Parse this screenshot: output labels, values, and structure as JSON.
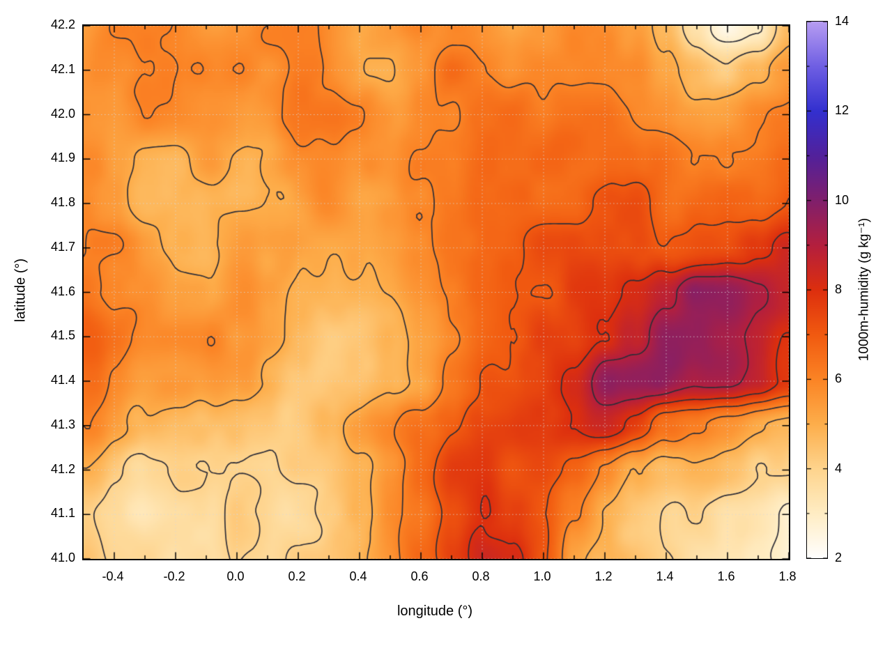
{
  "figure": {
    "background": "#ffffff"
  },
  "chart_data": {
    "type": "heatmap",
    "subtype": "filled-contour-map",
    "title": "",
    "x_axis": {
      "label": "longitude (°)",
      "range": [
        -0.5,
        1.8
      ],
      "tick_values": [
        -0.4,
        -0.2,
        0.0,
        0.2,
        0.4,
        0.6,
        0.8,
        1.0,
        1.2,
        1.4,
        1.6,
        1.8
      ],
      "tick_labels": [
        "-0.4",
        "-0.2",
        "0.0",
        "0.2",
        "0.4",
        "0.6",
        "0.8",
        "1.0",
        "1.2",
        "1.4",
        "1.6",
        "1.8"
      ],
      "minor_tick_step": 0.1
    },
    "y_axis": {
      "label": "latitude (°)",
      "range": [
        41.0,
        42.2
      ],
      "tick_values": [
        41.0,
        41.1,
        41.2,
        41.3,
        41.4,
        41.5,
        41.6,
        41.7,
        41.8,
        41.9,
        42.0,
        42.1,
        42.2
      ],
      "tick_labels": [
        "41.0",
        "41.1",
        "41.2",
        "41.3",
        "41.4",
        "41.5",
        "41.6",
        "41.7",
        "41.8",
        "41.9",
        "42.0",
        "42.1",
        "42.2"
      ]
    },
    "colorbar": {
      "label": "1000m-humidity (g kg⁻¹)",
      "range": [
        2,
        14
      ],
      "tick_values": [
        2,
        4,
        6,
        8,
        10,
        12,
        14
      ],
      "tick_labels": [
        "2",
        "4",
        "6",
        "8",
        "10",
        "12",
        "14"
      ],
      "minor_tick_values": [
        3,
        5,
        7,
        9,
        11,
        13
      ],
      "palette_stops": [
        [
          2,
          "#ffffff"
        ],
        [
          3,
          "#ffedc4"
        ],
        [
          4,
          "#fed48d"
        ],
        [
          5,
          "#fdae4b"
        ],
        [
          6,
          "#fb8425"
        ],
        [
          7,
          "#f15a10"
        ],
        [
          8,
          "#dd2f0e"
        ],
        [
          9,
          "#b41f3e"
        ],
        [
          10,
          "#801f6c"
        ],
        [
          11,
          "#52219b"
        ],
        [
          12,
          "#3330cf"
        ],
        [
          13,
          "#6f5fe3"
        ],
        [
          14,
          "#b79df2"
        ]
      ]
    },
    "grid_lines": {
      "show": true,
      "style": "dotted",
      "color": "#d9d9d9"
    },
    "contours": {
      "levels": [
        3,
        4,
        5,
        6,
        7,
        8,
        9,
        10
      ],
      "color": "#2e2e38",
      "width": 1.7
    },
    "field": {
      "units": "g kg-1",
      "lon_start": -0.5,
      "lon_step": 0.1,
      "lat_start": 42.2,
      "lat_step": -0.1,
      "noise_amplitude": [
        0.7,
        0.45,
        0.3
      ],
      "values": [
        [
          5.5,
          6,
          6,
          6,
          5.5,
          5.5,
          6,
          6,
          5.5,
          5,
          5.5,
          6,
          6,
          5.5,
          5,
          5.5,
          6,
          6,
          5.5,
          5,
          3.5,
          2.5,
          3,
          4.5
        ],
        [
          5.5,
          5.5,
          6,
          6,
          6,
          6,
          5.5,
          6,
          5.5,
          5,
          5,
          5.5,
          6.5,
          6,
          5.5,
          6,
          6,
          6,
          6,
          5.5,
          5,
          4.5,
          5,
          5.5
        ],
        [
          5.5,
          5.5,
          6,
          6,
          5.5,
          5.5,
          5.5,
          6,
          6,
          6,
          5.5,
          6,
          6,
          6.5,
          6.5,
          6,
          6.5,
          6.5,
          6,
          6,
          5.5,
          5.5,
          6,
          6
        ],
        [
          6,
          5.5,
          5,
          5,
          5.5,
          5,
          5,
          5.5,
          5.5,
          5.5,
          5.5,
          6,
          6,
          6.5,
          6.5,
          6.5,
          6.5,
          6.5,
          6.5,
          6.5,
          6,
          6,
          6,
          6.5
        ],
        [
          6,
          5.5,
          5,
          5,
          5,
          5,
          5,
          5,
          5.5,
          5,
          5,
          5.5,
          6,
          6.5,
          6.5,
          6.5,
          6.5,
          7,
          7,
          6.5,
          6.5,
          6.5,
          6.5,
          7
        ],
        [
          6,
          6,
          5.5,
          5,
          5,
          5.5,
          5,
          5,
          5,
          5,
          5,
          5.5,
          6,
          6.5,
          6.5,
          7,
          7,
          7,
          7,
          7,
          7,
          7,
          7.5,
          8.5
        ],
        [
          6.5,
          6,
          6,
          5.5,
          5.5,
          6,
          5.5,
          5,
          5,
          5,
          5,
          5.5,
          6,
          6.5,
          7,
          7,
          7.5,
          7.5,
          8,
          8.5,
          9.5,
          9.5,
          9,
          8.5
        ],
        [
          7,
          6.5,
          6,
          6,
          6,
          5.5,
          5.5,
          5,
          4.5,
          4.5,
          5,
          5.5,
          6,
          6.5,
          7,
          7.5,
          7.5,
          8,
          8.5,
          9.5,
          9.5,
          9,
          8.5,
          8
        ],
        [
          6.5,
          6,
          5.5,
          5.5,
          5.5,
          5.5,
          5,
          4.5,
          4.5,
          4.5,
          5,
          5.5,
          6.5,
          7,
          7,
          7.5,
          8,
          9.5,
          9.5,
          9.5,
          9,
          9,
          8.5,
          8
        ],
        [
          6,
          5.5,
          5,
          4.5,
          4.5,
          4.5,
          4.5,
          4.5,
          5,
          5.5,
          6,
          6.5,
          7,
          7.5,
          7.5,
          7.5,
          8,
          8.5,
          7.5,
          6.5,
          6,
          5.5,
          5,
          5
        ],
        [
          5,
          4.5,
          4,
          4,
          4,
          4,
          4,
          4.5,
          4.5,
          5,
          5.5,
          6.5,
          7.5,
          7.5,
          7,
          7.5,
          7,
          6,
          5,
          4.5,
          4.5,
          4.5,
          4,
          4
        ],
        [
          4.5,
          4,
          3.5,
          3.5,
          3.5,
          4,
          4,
          4,
          4.5,
          5,
          5.5,
          6,
          7,
          8,
          7.5,
          7,
          6,
          5,
          4.5,
          4,
          4,
          3.5,
          3.5,
          3
        ],
        [
          4.5,
          4,
          4,
          3.5,
          3.5,
          4,
          4,
          4.5,
          4.5,
          5,
          5.5,
          6.5,
          7.5,
          8.5,
          8,
          7,
          5.5,
          5,
          4.5,
          4,
          3.5,
          3.5,
          3,
          2.8
        ]
      ]
    }
  }
}
